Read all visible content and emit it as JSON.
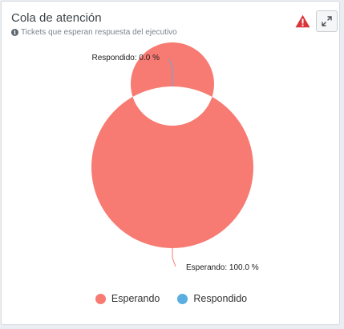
{
  "widget": {
    "title": "Cola de atención",
    "subtitle": "Tickets que esperan respuesta del ejecutivo"
  },
  "icons": {
    "info": "info-icon",
    "alert": "warning-triangle-icon",
    "expand": "expand-arrows-icon"
  },
  "colors": {
    "esperando": "#f77b72",
    "respondido": "#5aaee0",
    "alert": "#d9343a"
  },
  "chart_data": {
    "type": "pie",
    "variant": "donut",
    "title": "",
    "series": [
      {
        "name": "Esperando",
        "value": 100.0,
        "color": "#f77b72"
      },
      {
        "name": "Respondido",
        "value": 0.0,
        "color": "#5aaee0"
      }
    ],
    "data_labels": [
      "Esperando: 100.0 %",
      "Respondido: 0.0 %"
    ],
    "legend": {
      "position": "bottom",
      "entries": [
        "Esperando",
        "Respondido"
      ]
    }
  }
}
